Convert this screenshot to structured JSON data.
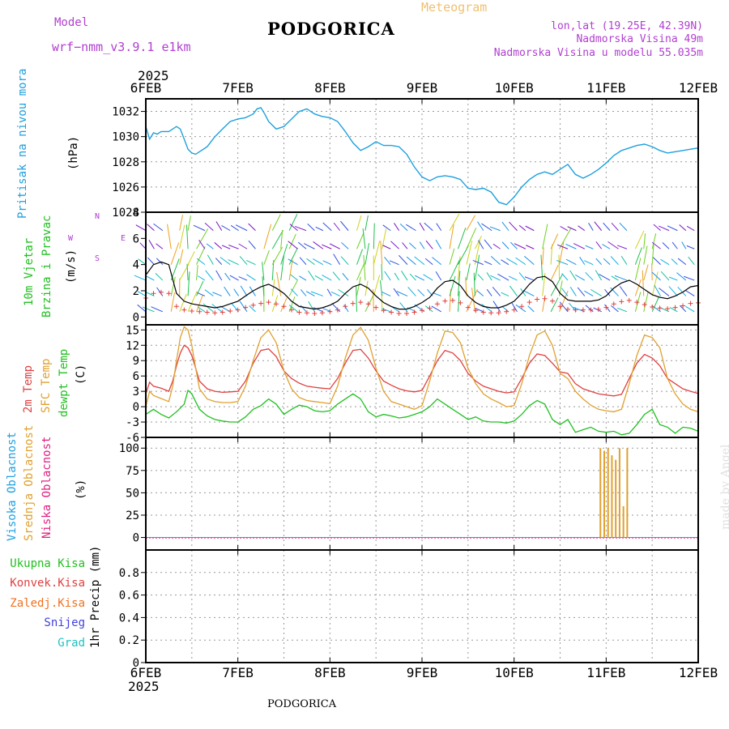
{
  "header": {
    "model_label": "Model",
    "model_name": "wrf−nmm_v3.9.1  e1km",
    "title": "PODGORICA",
    "meteogram_label": "Meteogram",
    "coords": "lon,lat (19.25E, 42.39N)",
    "elevation": "Nadmorska Visina 49m",
    "elevation_model": "Nadmorska Visina u modelu 55.035m",
    "year_top": "2025",
    "year_bottom": "2025",
    "footer_title": "PODGORICA",
    "credit": "made by Angel"
  },
  "colors": {
    "pressure": "#1ea0dc",
    "temp2m": "#e04040",
    "sfc": "#e0a030",
    "dewpt": "#20c020",
    "high_cloud": "#20a0e0",
    "mid_cloud": "#e0a030",
    "low_cloud": "#e02080",
    "purple": "#b040d0"
  },
  "wind_compass": {
    "n": "N",
    "s": "S",
    "e": "E",
    "w": "W"
  },
  "chart_data": [
    {
      "type": "line",
      "panel": "pressure",
      "ylabel_lines": [
        "Pritisak na nivou mora",
        "(hPa)"
      ],
      "x_ticks": [
        "6FEB",
        "7FEB",
        "8FEB",
        "9FEB",
        "10FEB",
        "11FEB",
        "12FEB"
      ],
      "xlim": [
        0,
        144
      ],
      "ylim": [
        1024,
        1033
      ],
      "y_ticks": [
        "1024",
        "1026",
        "1028",
        "1030",
        "1032"
      ],
      "grid": true,
      "series": [
        {
          "x": [
            0,
            1,
            2,
            3,
            4,
            6,
            8,
            9,
            10,
            11,
            12,
            13,
            14,
            16,
            18,
            20,
            22,
            24,
            26,
            28,
            29,
            30,
            31,
            32,
            34,
            36,
            38,
            40,
            42,
            44,
            46,
            48,
            50,
            52,
            54,
            56,
            58,
            60,
            62,
            64,
            66,
            68,
            70,
            72,
            74,
            76,
            78,
            80,
            82,
            84,
            86,
            88,
            90,
            92,
            94,
            96,
            98,
            100,
            102,
            104,
            106,
            108,
            110,
            112,
            114,
            116,
            118,
            120,
            122,
            124,
            126,
            128,
            130,
            132,
            134,
            136,
            138,
            140,
            142,
            144
          ],
          "values": [
            1030.8,
            1029.8,
            1030.3,
            1030.2,
            1030.4,
            1030.4,
            1030.8,
            1030.6,
            1029.8,
            1029.0,
            1028.7,
            1028.6,
            1028.8,
            1029.2,
            1030.0,
            1030.6,
            1031.2,
            1031.4,
            1031.5,
            1031.8,
            1032.2,
            1032.3,
            1031.8,
            1031.2,
            1030.6,
            1030.8,
            1031.4,
            1032.0,
            1032.2,
            1031.8,
            1031.6,
            1031.5,
            1031.2,
            1030.4,
            1029.5,
            1028.9,
            1029.2,
            1029.6,
            1029.3,
            1029.3,
            1029.2,
            1028.6,
            1027.6,
            1026.8,
            1026.5,
            1026.8,
            1026.9,
            1026.8,
            1026.6,
            1025.9,
            1025.8,
            1025.9,
            1025.6,
            1024.8,
            1024.6,
            1025.2,
            1026.0,
            1026.6,
            1027.0,
            1027.2,
            1027.0,
            1027.4,
            1027.8,
            1027.0,
            1026.7,
            1027.0,
            1027.4,
            1027.9,
            1028.5,
            1028.9,
            1029.1,
            1029.3,
            1029.4,
            1029.2,
            1028.9,
            1028.7,
            1028.8,
            1028.9,
            1029.0,
            1029.1
          ]
        }
      ]
    },
    {
      "type": "line",
      "panel": "wind",
      "ylabel_lines": [
        "10m Vjetar",
        "Brzina i Pravac",
        "(m/s)"
      ],
      "xlim": [
        0,
        144
      ],
      "ylim": [
        -0.6,
        8
      ],
      "y_ticks": [
        "0",
        "2",
        "4",
        "6",
        "8"
      ],
      "grid": true,
      "series": [
        {
          "name": "",
          "x": [
            0,
            2,
            4,
            6,
            8,
            10,
            12,
            14,
            16,
            18,
            20,
            22,
            24,
            26,
            28,
            30,
            32,
            34,
            36,
            38,
            40,
            42,
            44,
            46,
            48,
            50,
            52,
            54,
            56,
            58,
            60,
            62,
            64,
            66,
            68,
            70,
            72,
            74,
            76,
            78,
            80,
            82,
            84,
            86,
            88,
            90,
            92,
            94,
            96,
            98,
            100,
            102,
            104,
            106,
            108,
            110,
            112,
            114,
            116,
            118,
            120,
            122,
            124,
            126,
            128,
            130,
            132,
            134,
            136,
            138,
            140,
            142,
            144
          ],
          "values": [
            3.2,
            4.0,
            4.2,
            4.0,
            1.8,
            1.2,
            1.0,
            0.9,
            0.8,
            0.7,
            0.8,
            1.0,
            1.2,
            1.6,
            2.0,
            2.3,
            2.5,
            2.2,
            1.8,
            1.2,
            0.8,
            0.7,
            0.6,
            0.7,
            0.9,
            1.2,
            1.8,
            2.3,
            2.5,
            2.2,
            1.6,
            1.1,
            0.8,
            0.6,
            0.6,
            0.8,
            1.1,
            1.5,
            2.2,
            2.7,
            2.8,
            2.4,
            1.6,
            1.1,
            0.8,
            0.7,
            0.7,
            0.9,
            1.2,
            1.8,
            2.5,
            3.0,
            3.1,
            2.7,
            1.8,
            1.3,
            1.2,
            1.2,
            1.2,
            1.3,
            1.6,
            2.2,
            2.6,
            2.8,
            2.5,
            2.1,
            1.7,
            1.5,
            1.4,
            1.6,
            1.9,
            2.3,
            2.4
          ]
        }
      ]
    },
    {
      "type": "line",
      "panel": "temperature",
      "ylabel_lines": [
        "2m Temp",
        "SFC Temp",
        "dewpt Temp",
        "(C)"
      ],
      "xlim": [
        0,
        144
      ],
      "ylim": [
        -6,
        16
      ],
      "y_ticks": [
        "-6",
        "-3",
        "0",
        "3",
        "6",
        "9",
        "12",
        "15"
      ],
      "grid": true,
      "series": [
        {
          "name": "2m Temp",
          "x": [
            0,
            1,
            2,
            4,
            6,
            7,
            8,
            9,
            10,
            11,
            12,
            13,
            14,
            16,
            18,
            20,
            22,
            24,
            26,
            28,
            30,
            32,
            34,
            36,
            38,
            40,
            42,
            44,
            46,
            48,
            50,
            52,
            54,
            56,
            58,
            60,
            62,
            64,
            66,
            68,
            70,
            72,
            74,
            76,
            78,
            80,
            82,
            84,
            86,
            88,
            90,
            92,
            94,
            96,
            98,
            100,
            102,
            104,
            106,
            108,
            110,
            112,
            114,
            116,
            118,
            120,
            122,
            124,
            126,
            128,
            130,
            132,
            134,
            136,
            138,
            140,
            142,
            144
          ],
          "values": [
            2.5,
            4.8,
            4.0,
            3.6,
            3.0,
            5.0,
            8.0,
            10.5,
            12.0,
            11.5,
            10.0,
            7.5,
            5.0,
            3.5,
            3.0,
            2.8,
            2.9,
            3.0,
            5.0,
            8.5,
            11.0,
            11.3,
            9.8,
            7.0,
            5.5,
            4.6,
            4.0,
            3.8,
            3.6,
            3.5,
            5.5,
            8.5,
            11.0,
            11.2,
            9.5,
            7.0,
            5.0,
            4.2,
            3.5,
            3.1,
            2.9,
            3.2,
            6.0,
            9.0,
            11.0,
            10.5,
            9.0,
            6.5,
            5.0,
            4.0,
            3.5,
            3.0,
            2.7,
            2.9,
            5.5,
            8.5,
            10.3,
            10.0,
            8.5,
            6.8,
            6.5,
            4.5,
            3.5,
            3.0,
            2.5,
            2.3,
            2.1,
            2.4,
            5.5,
            8.5,
            10.2,
            9.5,
            8.0,
            5.5,
            4.5,
            3.5,
            3.0,
            2.6
          ]
        },
        {
          "name": "SFC Temp",
          "x": [
            0,
            1,
            2,
            4,
            6,
            7,
            8,
            9,
            10,
            11,
            12,
            13,
            14,
            16,
            18,
            20,
            22,
            24,
            26,
            28,
            30,
            32,
            34,
            36,
            38,
            40,
            42,
            44,
            46,
            48,
            50,
            52,
            54,
            56,
            58,
            60,
            62,
            64,
            66,
            68,
            70,
            72,
            74,
            76,
            78,
            80,
            82,
            84,
            86,
            88,
            90,
            92,
            94,
            96,
            98,
            100,
            102,
            104,
            106,
            108,
            110,
            112,
            114,
            116,
            118,
            120,
            122,
            124,
            126,
            128,
            130,
            132,
            134,
            136,
            138,
            140,
            142,
            144
          ],
          "values": [
            0.0,
            3.0,
            2.2,
            1.6,
            1.0,
            4.0,
            9.0,
            13.5,
            15.6,
            15.0,
            12.0,
            7.5,
            3.5,
            1.5,
            1.0,
            0.8,
            0.8,
            1.0,
            4.0,
            9.0,
            13.5,
            15.0,
            12.5,
            7.0,
            3.5,
            1.8,
            1.2,
            1.0,
            0.8,
            0.6,
            4.0,
            9.5,
            14.0,
            15.5,
            13.0,
            7.5,
            3.0,
            1.0,
            0.5,
            0.0,
            -0.5,
            0.2,
            5.0,
            10.5,
            14.8,
            14.5,
            12.5,
            7.5,
            4.5,
            2.5,
            1.5,
            0.8,
            0.0,
            0.2,
            4.5,
            10.0,
            14.0,
            14.8,
            12.0,
            6.5,
            5.5,
            3.0,
            1.5,
            0.3,
            -0.5,
            -0.8,
            -1.0,
            -0.5,
            4.5,
            10.0,
            14.0,
            13.5,
            11.5,
            5.5,
            2.5,
            0.5,
            -0.5,
            -1.0
          ]
        },
        {
          "name": "dewpt Temp",
          "x": [
            0,
            2,
            4,
            6,
            8,
            10,
            11,
            12,
            14,
            16,
            18,
            20,
            22,
            24,
            26,
            28,
            30,
            32,
            34,
            36,
            38,
            40,
            42,
            44,
            46,
            48,
            50,
            52,
            54,
            56,
            58,
            60,
            62,
            64,
            66,
            68,
            70,
            72,
            74,
            76,
            78,
            80,
            82,
            84,
            86,
            88,
            90,
            92,
            94,
            96,
            98,
            100,
            102,
            104,
            106,
            108,
            110,
            112,
            114,
            116,
            118,
            120,
            122,
            124,
            126,
            128,
            130,
            132,
            134,
            136,
            138,
            140,
            142,
            144
          ],
          "values": [
            -1.5,
            -0.5,
            -1.5,
            -2.2,
            -1.0,
            0.5,
            3.2,
            2.5,
            -0.5,
            -1.8,
            -2.5,
            -2.8,
            -3.0,
            -3.0,
            -2.0,
            -0.5,
            0.2,
            1.5,
            0.5,
            -1.5,
            -0.5,
            0.3,
            0.0,
            -0.8,
            -1.0,
            -0.8,
            0.5,
            1.5,
            2.5,
            1.5,
            -1.0,
            -2.0,
            -1.5,
            -1.8,
            -2.2,
            -2.0,
            -1.5,
            -1.0,
            0.0,
            1.5,
            0.5,
            -0.5,
            -1.5,
            -2.5,
            -2.0,
            -2.8,
            -3.0,
            -3.0,
            -3.2,
            -2.8,
            -1.5,
            0.2,
            1.2,
            0.5,
            -2.5,
            -3.5,
            -2.5,
            -5.0,
            -4.5,
            -4.0,
            -4.8,
            -5.0,
            -4.8,
            -5.5,
            -5.2,
            -3.5,
            -1.5,
            -0.5,
            -3.5,
            -4.0,
            -5.2,
            -4.0,
            -4.2,
            -4.8
          ]
        }
      ]
    },
    {
      "type": "bar",
      "panel": "cloud",
      "ylabel_lines": [
        "Visoka Oblacnost",
        "Srednja Oblacnost",
        "Niska Oblacnost",
        "(%)"
      ],
      "xlim": [
        0,
        144
      ],
      "ylim": [
        -14,
        112
      ],
      "y_ticks": [
        "0",
        "25",
        "50",
        "75",
        "100"
      ],
      "grid": true,
      "series": [
        {
          "name": "Srednja Oblacnost",
          "x": [
            118.5,
            119.5,
            120.5,
            121.5,
            122.5,
            123.5,
            124.5,
            125.5
          ],
          "values": [
            100,
            97,
            100,
            92,
            87,
            100,
            35,
            100
          ]
        }
      ]
    },
    {
      "type": "bar",
      "panel": "precip",
      "ylabel_lines": [
        "1hr Precip (mm)"
      ],
      "legend": [
        "Ukupna Kisa",
        "Konvek.Kisa",
        "Zaledj.Kisa",
        "Snijeg",
        "Grad"
      ],
      "x_ticks": [
        "6FEB",
        "7FEB",
        "8FEB",
        "9FEB",
        "10FEB",
        "11FEB",
        "12FEB"
      ],
      "xlim": [
        0,
        144
      ],
      "ylim": [
        0,
        1.0
      ],
      "y_ticks": [
        "0",
        "0.2",
        "0.4",
        "0.6",
        "0.8"
      ],
      "grid": true,
      "series": [
        {
          "name": "Ukupna Kisa",
          "x": [],
          "values": []
        }
      ]
    }
  ]
}
